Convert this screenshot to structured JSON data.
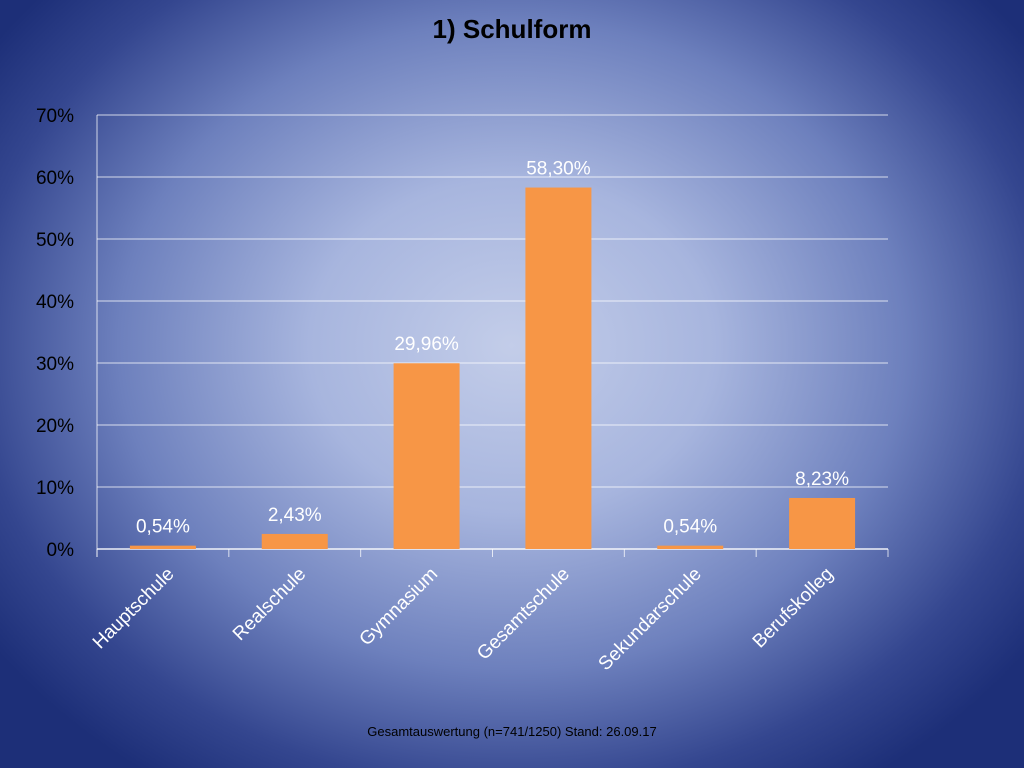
{
  "slide": {
    "title": "1) Schulform",
    "footer": "Gesamtauswertung (n=741/1250) Stand: 26.09.17"
  },
  "chart_data": {
    "type": "bar",
    "title": "1) Schulform",
    "categories": [
      "Hauptschule",
      "Realschule",
      "Gymnasium",
      "Gesamtschule",
      "Sekundarschule",
      "Berufskolleg"
    ],
    "values": [
      0.54,
      2.43,
      29.96,
      58.3,
      0.54,
      8.23
    ],
    "data_labels": [
      "0,54%",
      "2,43%",
      "29,96%",
      "58,30%",
      "0,54%",
      "8,23%"
    ],
    "y_ticks": [
      "0%",
      "10%",
      "20%",
      "30%",
      "40%",
      "50%",
      "60%",
      "70%"
    ],
    "ylim": [
      0,
      70
    ],
    "grid": true,
    "legend": "none",
    "colors": {
      "bar": "#f79646",
      "gridline": "#ffffff",
      "data_label": "#ffffff",
      "category_label": "#ffffff",
      "tick_label": "#000000"
    }
  }
}
